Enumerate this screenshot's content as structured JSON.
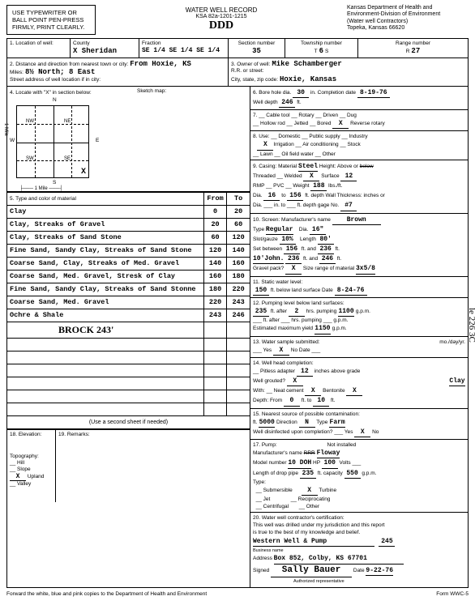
{
  "typewriter_box": "USE TYPEWRITER OR BALL POINT PEN-PRESS FIRMLY, PRINT CLEARLY.",
  "title": "WATER WELL RECORD",
  "ksa": "KSA 82a-1201-1215",
  "handwritten_top": "DDD",
  "dept": {
    "l1": "Kansas Department of Health and",
    "l2": "Environment-Division of Environment",
    "l3": "(Water well Contractors)",
    "l4": "Topeka, Kansas 66620"
  },
  "loc": {
    "label": "1. Location of well:",
    "county_label": "County",
    "county": "X Sheridan",
    "fraction_label": "Fraction",
    "fraction": "SE 1/4 SE 1/4 SE 1/4",
    "section_label": "Section number",
    "section": "35",
    "township_label": "Township number",
    "township_t": "T",
    "township": "6",
    "township_s": "S",
    "range_label": "Range number",
    "range_r": "R",
    "range": "27"
  },
  "dist": {
    "label": "2. Distance and direction from nearest town or city:",
    "from": "From Hoxie, KS",
    "miles": "8½ North; 8 East",
    "sublabel": "Street address of well location if in city:"
  },
  "owner": {
    "label": "3. Owner of well:",
    "name": "Mike Schamberger",
    "rr": "R.R. or street:",
    "city_label": "City, state, zip code:",
    "city": "Hoxie, Kansas"
  },
  "locate_label": "4. Locate with \"X\" in section below:",
  "sketch_label": "Sketch map:",
  "compass": {
    "n": "N",
    "s": "S",
    "e": "E",
    "w": "W",
    "nw": "NW",
    "ne": "NE",
    "sw": "SW",
    "se": "SE"
  },
  "mile": "1 Mile",
  "s6": {
    "label": "6. Bore hole dia.",
    "dia": "30",
    "in": "in.",
    "comp_label": "Completion date",
    "comp": "8-19-76",
    "depth_label": "Well depth",
    "depth": "246",
    "ft": "ft."
  },
  "s7": {
    "l1": "7. __ Cable tool __ Rotary __ Driven __ Dug",
    "l2": "__ Hollow rod __ Jetted __ Bored",
    "rev": "Reverse rotary",
    "x": "X"
  },
  "s8": {
    "label": "8. Use: __ Domestic __ Public supply __ Industry",
    "l2": "Irrigation __ Air conditioning __ Stock",
    "l3": "__ Lawn __ Oil field water __ Other",
    "x": "X"
  },
  "s9": {
    "label": "9. Casing: Material",
    "mat": "Steel",
    "height": "Height: Above or",
    "thread": "Threaded __ Welded",
    "wx": "X",
    "surf": "Surface",
    "surfv": "12",
    "rmp": "RMP __ PVC __",
    "weight": "Weight",
    "wv": "188",
    "lbs": "lbs./ft.",
    "dia1": "Dia.",
    "d1": "16",
    "to": "to",
    "d2": "156",
    "wt": "ft. depth Wall Thickness: inches or",
    "dia2": "Dia. ___ in. to ___ ft. depth gage No.",
    "gage": "#7"
  },
  "s10": {
    "label": "10. Screen: Manufacturer's name",
    "brown": "Brown",
    "type_l": "Type",
    "type": "Regular",
    "dia_l": "Dia.",
    "dia": "16\"",
    "slot_l": "Slot/gauze",
    "slot": "10%",
    "len_l": "Length",
    "len": "80'",
    "set_l": "Set between",
    "s1": "156",
    "and": "ft. and",
    "s2": "236",
    "ft": "ft.",
    "john": "10'John.",
    "j1": "236",
    "j2": "246",
    "gravel_l": "Gravel pack?",
    "gx": "X",
    "size_l": "Size range of material",
    "size": "3x5/8"
  },
  "s11": {
    "label": "11. Static water level:",
    "v": "150",
    "below": "ft. below land surface Date",
    "date": "8-24-76"
  },
  "s12": {
    "label": "12. Pumping level below land surfaces:",
    "v1": "235",
    "after": "ft. after",
    "hrs": "2",
    "pump": "hrs. pumping",
    "gpm1": "1100",
    "gpm": "g.p.m.",
    "l2": "___ ft. after ___ hrs. pumping ___ g.p.m.",
    "est": "Estimated maximum yield",
    "estv": "1150"
  },
  "s13": {
    "label": "13. Water sample submitted:",
    "yes": "___ Yes",
    "x": "X",
    "no": "No Date ___",
    "mo": "mo./day/yr."
  },
  "s14": {
    "label": "14. Well head completion:",
    "pit": "__ Pitless adapter",
    "v": "12",
    "inch": "inches above grade",
    "grout": "Well grouted?",
    "gx": "X",
    "clay": "Clay",
    "with": "With: __ Neat cement",
    "cx": "X",
    "bent": "Bentonite",
    "bx": "X",
    "depth": "Depth: From",
    "d1": "0",
    "to": "ft. to",
    "d2": "10",
    "ft": "ft."
  },
  "s15": {
    "label": "15. Nearest source of possible contamination:",
    "ft": "ft.",
    "fv": "5000",
    "dir": "Direction",
    "dv": "N",
    "type": "Type",
    "tv": "Farm",
    "dis": "Well disinfected upon completion? ___ Yes",
    "x": "X",
    "no": "No"
  },
  "s17": {
    "label": "17. Pump:",
    "not": "Not installed",
    "man": "Manufacturer's name",
    "mv": "Floway",
    "model": "Model number",
    "modv": "10 DOH",
    "hp": "HP",
    "hpv": "100",
    "volts": "Volts ___",
    "drop": "Length of drop pipe",
    "dv": "235",
    "cap": "ft. capacity",
    "cv": "550",
    "gpm": "g.p.m.",
    "type": "Type:",
    "t1": "__ Submersible",
    "t2": "Turbine",
    "tx": "X",
    "t3": "__ Jet",
    "t4": "__ Reciprocating",
    "t5": "__ Centrifugal",
    "t6": "__ Other"
  },
  "s20": {
    "label": "20. Water well contractor's certification:",
    "l1": "This well was drilled under my jurisdiction and this report",
    "l2": "is true to the best of my knowledge and belief.",
    "biz": "Western Well & Pump",
    "num": "245",
    "bizlabel": "Business name",
    "addr_l": "Address",
    "addr": "Box 852, Colby, KS 67701",
    "sign_l": "Signed",
    "sign": "Sally Bauer",
    "date_l": "Date",
    "date": "9-22-76",
    "auth": "Authorized representative"
  },
  "s5_label": "5. Type and color of material",
  "s5_from": "From",
  "s5_to": "To",
  "materials": [
    {
      "name": "Clay",
      "from": "0",
      "to": "20"
    },
    {
      "name": "Clay, Streaks of Gravel",
      "from": "20",
      "to": "60"
    },
    {
      "name": "Clay, Streaks of Sand Stone",
      "from": "60",
      "to": "120"
    },
    {
      "name": "Fine Sand, Sandy Clay, Streaks of Sand Stone",
      "from": "120",
      "to": "140"
    },
    {
      "name": "Coarse Sand, Clay, Streaks of Med. Gravel",
      "from": "140",
      "to": "160"
    },
    {
      "name": "Coarse Sand, Med. Gravel, Stresk of Clay",
      "from": "160",
      "to": "180"
    },
    {
      "name": "Fine Sand, Sandy Clay, Streaks of Sand Stonne",
      "from": "180",
      "to": "220"
    },
    {
      "name": "Coarse Sand, Med. Gravel",
      "from": "220",
      "to": "243"
    },
    {
      "name": "Ochre & Shale",
      "from": "243",
      "to": "246"
    }
  ],
  "brock": "BROCK 243'",
  "second_sheet": "(Use a second sheet if needed)",
  "s18": "18. Elevation:",
  "s19": "19. Remarks:",
  "topo": {
    "label": "Topography:",
    "hill": "__ Hill",
    "slope": "__ Slope",
    "upland": "Upland",
    "x": "X",
    "valley": "__ Valley"
  },
  "footer_left": "Forward the white, blue and pink copies to the Department of Health and Environment",
  "footer_right": "Form WWC-5",
  "margin_notes": "le 226 3C"
}
